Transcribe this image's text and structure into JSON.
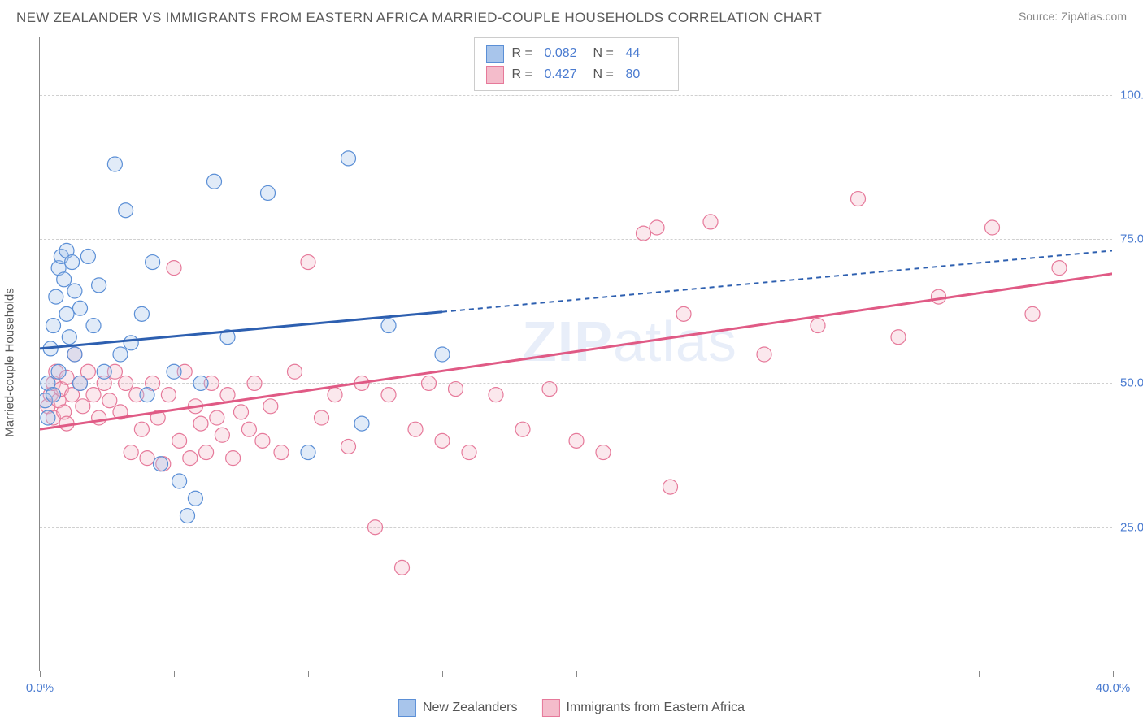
{
  "title": "NEW ZEALANDER VS IMMIGRANTS FROM EASTERN AFRICA MARRIED-COUPLE HOUSEHOLDS CORRELATION CHART",
  "source": "Source: ZipAtlas.com",
  "ylabel": "Married-couple Households",
  "watermark_bold": "ZIP",
  "watermark_rest": "atlas",
  "chart": {
    "type": "scatter",
    "xlim": [
      0,
      40
    ],
    "ylim": [
      0,
      110
    ],
    "x_ticks": [
      0,
      5,
      10,
      15,
      20,
      25,
      30,
      35,
      40
    ],
    "x_tick_labels": {
      "0": "0.0%",
      "40": "40.0%"
    },
    "y_ticks": [
      25,
      50,
      75,
      100
    ],
    "y_tick_labels": [
      "25.0%",
      "50.0%",
      "75.0%",
      "100.0%"
    ],
    "background_color": "#ffffff",
    "grid_color": "#d0d0d0",
    "axis_color": "#888888",
    "marker_radius": 9,
    "marker_fill_opacity": 0.35,
    "marker_stroke_width": 1.2,
    "series": [
      {
        "name": "New Zealanders",
        "color_fill": "#a8c5eb",
        "color_stroke": "#5b8fd6",
        "line_color": "#2d5fb0",
        "R": "0.082",
        "N": "44",
        "trend": {
          "x1": 0,
          "y1": 56,
          "x2": 40,
          "y2": 73,
          "solid_until_x": 15
        },
        "points": [
          [
            0.2,
            47
          ],
          [
            0.3,
            44
          ],
          [
            0.3,
            50
          ],
          [
            0.4,
            56
          ],
          [
            0.5,
            60
          ],
          [
            0.5,
            48
          ],
          [
            0.6,
            65
          ],
          [
            0.7,
            52
          ],
          [
            0.7,
            70
          ],
          [
            0.8,
            72
          ],
          [
            0.9,
            68
          ],
          [
            1.0,
            73
          ],
          [
            1.0,
            62
          ],
          [
            1.1,
            58
          ],
          [
            1.2,
            71
          ],
          [
            1.3,
            55
          ],
          [
            1.3,
            66
          ],
          [
            1.5,
            63
          ],
          [
            1.5,
            50
          ],
          [
            1.8,
            72
          ],
          [
            2.0,
            60
          ],
          [
            2.2,
            67
          ],
          [
            2.4,
            52
          ],
          [
            2.8,
            88
          ],
          [
            3.0,
            55
          ],
          [
            3.2,
            80
          ],
          [
            3.4,
            57
          ],
          [
            3.8,
            62
          ],
          [
            4.0,
            48
          ],
          [
            4.2,
            71
          ],
          [
            4.5,
            36
          ],
          [
            5.0,
            52
          ],
          [
            5.2,
            33
          ],
          [
            5.5,
            27
          ],
          [
            5.8,
            30
          ],
          [
            6.0,
            50
          ],
          [
            6.5,
            85
          ],
          [
            7.0,
            58
          ],
          [
            8.5,
            83
          ],
          [
            10.0,
            38
          ],
          [
            11.5,
            89
          ],
          [
            12.0,
            43
          ],
          [
            13.0,
            60
          ],
          [
            15.0,
            55
          ]
        ]
      },
      {
        "name": "Immigrants from Eastern Africa",
        "color_fill": "#f4bccb",
        "color_stroke": "#e6799a",
        "line_color": "#e05a85",
        "R": "0.427",
        "N": "80",
        "trend": {
          "x1": 0,
          "y1": 42,
          "x2": 40,
          "y2": 69,
          "solid_until_x": 40
        },
        "points": [
          [
            0.3,
            46
          ],
          [
            0.4,
            48
          ],
          [
            0.5,
            50
          ],
          [
            0.5,
            44
          ],
          [
            0.6,
            52
          ],
          [
            0.7,
            47
          ],
          [
            0.8,
            49
          ],
          [
            0.9,
            45
          ],
          [
            1.0,
            51
          ],
          [
            1.0,
            43
          ],
          [
            1.2,
            48
          ],
          [
            1.3,
            55
          ],
          [
            1.5,
            50
          ],
          [
            1.6,
            46
          ],
          [
            1.8,
            52
          ],
          [
            2.0,
            48
          ],
          [
            2.2,
            44
          ],
          [
            2.4,
            50
          ],
          [
            2.6,
            47
          ],
          [
            2.8,
            52
          ],
          [
            3.0,
            45
          ],
          [
            3.2,
            50
          ],
          [
            3.4,
            38
          ],
          [
            3.6,
            48
          ],
          [
            3.8,
            42
          ],
          [
            4.0,
            37
          ],
          [
            4.2,
            50
          ],
          [
            4.4,
            44
          ],
          [
            4.6,
            36
          ],
          [
            4.8,
            48
          ],
          [
            5.0,
            70
          ],
          [
            5.2,
            40
          ],
          [
            5.4,
            52
          ],
          [
            5.6,
            37
          ],
          [
            5.8,
            46
          ],
          [
            6.0,
            43
          ],
          [
            6.2,
            38
          ],
          [
            6.4,
            50
          ],
          [
            6.6,
            44
          ],
          [
            6.8,
            41
          ],
          [
            7.0,
            48
          ],
          [
            7.2,
            37
          ],
          [
            7.5,
            45
          ],
          [
            7.8,
            42
          ],
          [
            8.0,
            50
          ],
          [
            8.3,
            40
          ],
          [
            8.6,
            46
          ],
          [
            9.0,
            38
          ],
          [
            9.5,
            52
          ],
          [
            10.0,
            71
          ],
          [
            10.5,
            44
          ],
          [
            11.0,
            48
          ],
          [
            11.5,
            39
          ],
          [
            12.0,
            50
          ],
          [
            12.5,
            25
          ],
          [
            13.0,
            48
          ],
          [
            13.5,
            18
          ],
          [
            14.0,
            42
          ],
          [
            14.5,
            50
          ],
          [
            15.0,
            40
          ],
          [
            15.5,
            49
          ],
          [
            16.0,
            38
          ],
          [
            17.0,
            48
          ],
          [
            18.0,
            42
          ],
          [
            19.0,
            49
          ],
          [
            20.0,
            40
          ],
          [
            21.0,
            38
          ],
          [
            22.5,
            76
          ],
          [
            23.0,
            77
          ],
          [
            23.5,
            32
          ],
          [
            24.0,
            62
          ],
          [
            25.0,
            78
          ],
          [
            27.0,
            55
          ],
          [
            29.0,
            60
          ],
          [
            30.5,
            82
          ],
          [
            32.0,
            58
          ],
          [
            33.5,
            65
          ],
          [
            35.5,
            77
          ],
          [
            37.0,
            62
          ],
          [
            38.0,
            70
          ]
        ]
      }
    ]
  },
  "legend_top": {
    "R_label": "R =",
    "N_label": "N ="
  },
  "legend_bottom": [
    {
      "label": "New Zealanders",
      "fill": "#a8c5eb",
      "stroke": "#5b8fd6"
    },
    {
      "label": "Immigrants from Eastern Africa",
      "fill": "#f4bccb",
      "stroke": "#e6799a"
    }
  ]
}
